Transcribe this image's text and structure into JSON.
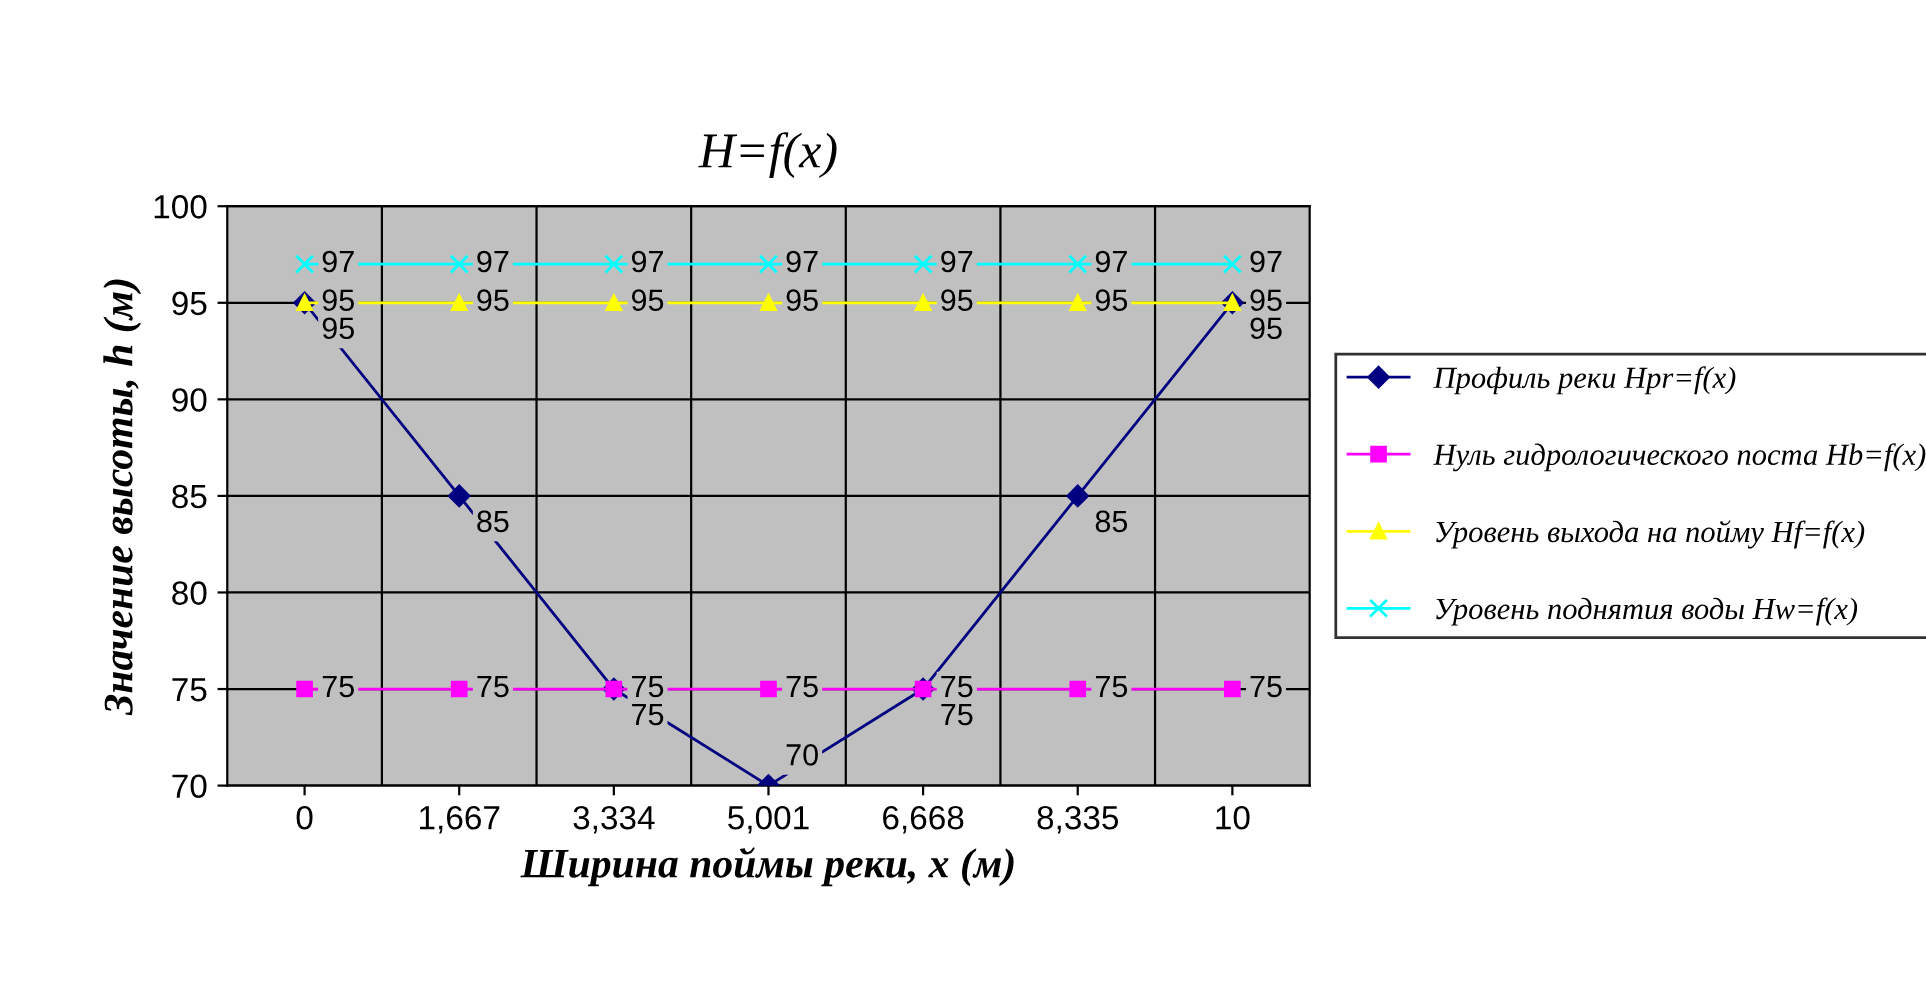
{
  "chart_data": {
    "type": "line",
    "title": "H=f(x)",
    "xlabel": "Ширина поймы реки, x (м)",
    "ylabel": "Значение высоты, h (м)",
    "categories": [
      "0",
      "1,667",
      "3,334",
      "5,001",
      "6,668",
      "8,335",
      "10"
    ],
    "series": [
      {
        "name": "Профиль реки Hpr=f(x)",
        "color": "#000080",
        "marker": "diamond",
        "values": [
          95,
          85,
          75,
          70,
          75,
          85,
          95
        ]
      },
      {
        "name": "Нуль гидрологического поста Hb=f(x)",
        "color": "#ff00ff",
        "marker": "square",
        "values": [
          75,
          75,
          75,
          75,
          75,
          75,
          75
        ]
      },
      {
        "name": "Уровень выхода на пойму Hf=f(x)",
        "color": "#ffff00",
        "marker": "triangle",
        "values": [
          95,
          95,
          95,
          95,
          95,
          95,
          95
        ]
      },
      {
        "name": "Уровень поднятия воды Hw=f(x)",
        "color": "#00ffff",
        "marker": "cross",
        "values": [
          97,
          97,
          97,
          97,
          97,
          97,
          97
        ]
      }
    ],
    "ylim": [
      70,
      100
    ],
    "yticks": [
      70,
      75,
      80,
      85,
      90,
      95,
      100
    ],
    "grid": true,
    "legend": "right",
    "data_labels": true
  }
}
